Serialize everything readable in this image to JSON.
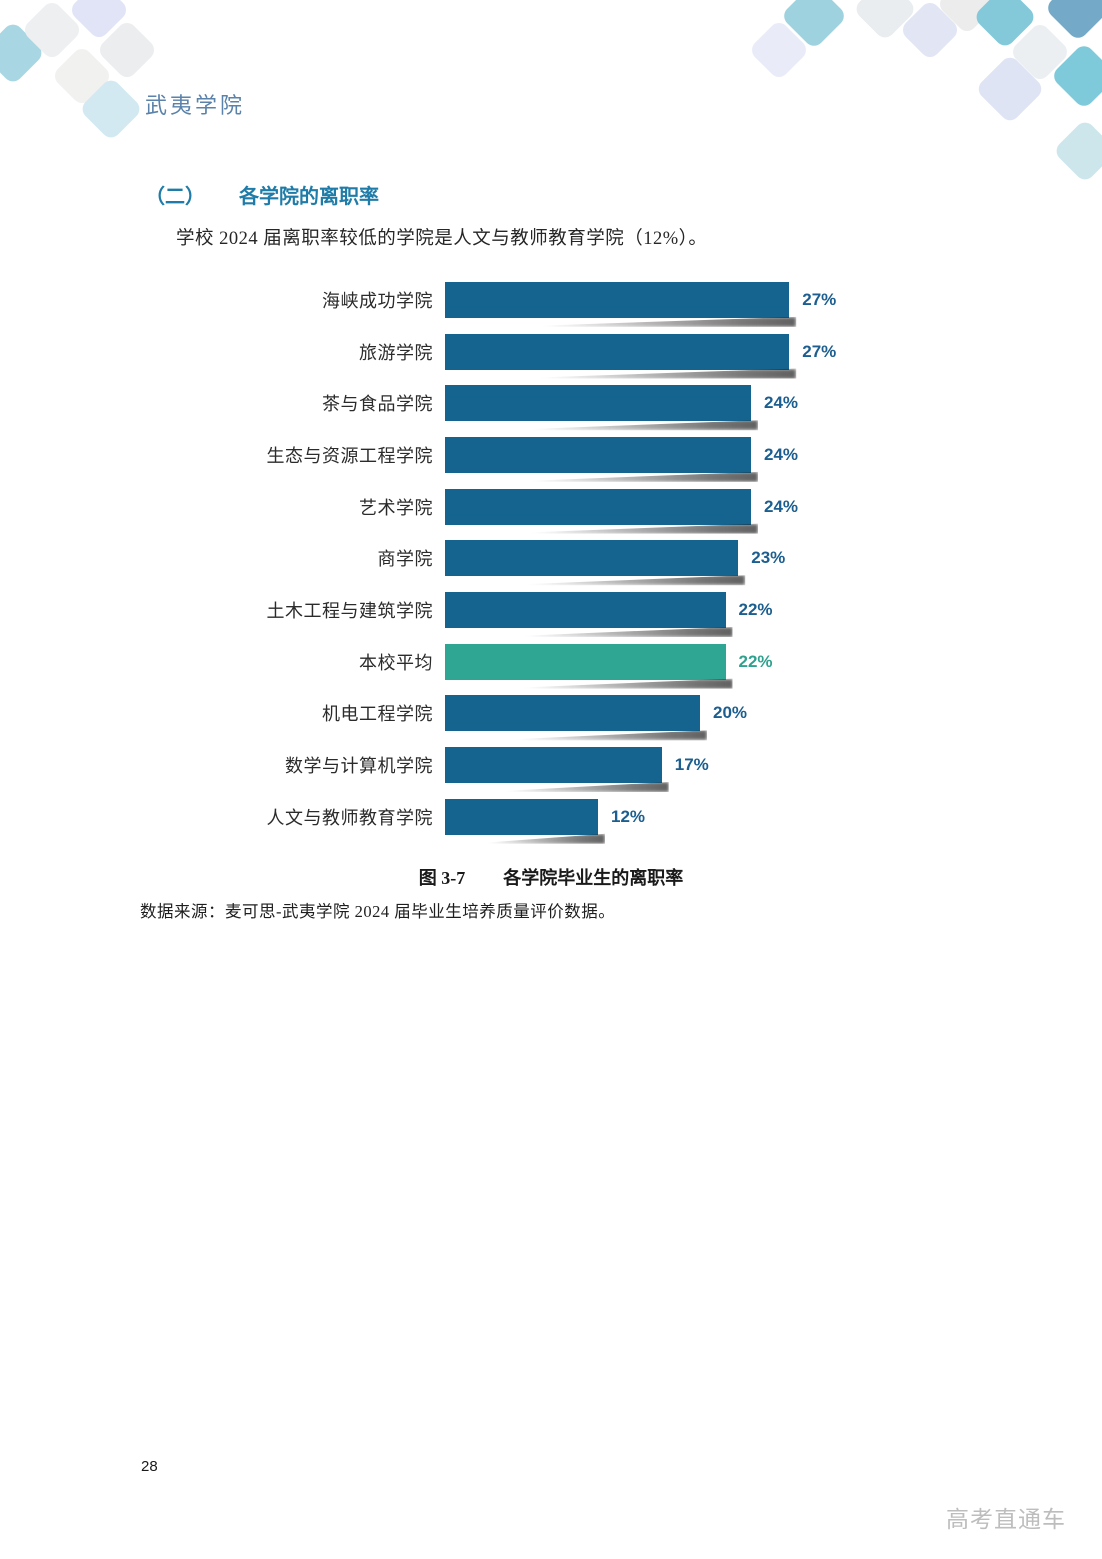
{
  "page": {
    "header_logo": "武夷学院",
    "page_number": "28",
    "watermark": "高考直通车"
  },
  "section": {
    "number": "（二）",
    "title": "各学院的离职率",
    "paragraph": "学校 2024 届离职率较低的学院是人文与教师教育学院（12%）。"
  },
  "figure": {
    "label": "图 3-7",
    "title": "各学院毕业生的离职率",
    "source": "数据来源：麦可思-武夷学院 2024 届毕业生培养质量评价数据。"
  },
  "chart_data": {
    "type": "bar",
    "orientation": "horizontal",
    "title": "各学院毕业生的离职率",
    "categories": [
      "海峡成功学院",
      "旅游学院",
      "茶与食品学院",
      "生态与资源工程学院",
      "艺术学院",
      "商学院",
      "土木工程与建筑学院",
      "本校平均",
      "机电工程学院",
      "数学与计算机学院",
      "人文与教师教育学院"
    ],
    "values": [
      27,
      27,
      24,
      24,
      24,
      23,
      22,
      22,
      20,
      17,
      12
    ],
    "value_labels": [
      "27%",
      "27%",
      "24%",
      "24%",
      "24%",
      "23%",
      "22%",
      "22%",
      "20%",
      "17%",
      "12%"
    ],
    "highlight_index": 7,
    "highlight_category": "本校平均",
    "xlim": [
      0,
      30
    ],
    "grid": false,
    "legend": false,
    "data_labels_position": "outside-end"
  },
  "colors": {
    "logo_text": "#5A82AA",
    "heading": "#1F7CA8",
    "body_text": "#262626",
    "bar_blue": "#15648F",
    "bar_teal": "#2FA694",
    "value_blue": "#1B5E8F",
    "value_teal": "#2FA18F",
    "watermark": "#BDBDBD"
  }
}
